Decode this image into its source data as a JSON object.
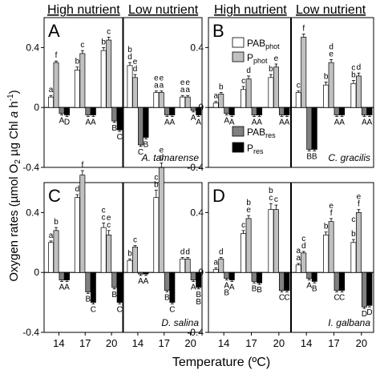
{
  "ylabel_text": "Oxygen rates (µmol O",
  "ylabel_sub": "2",
  "ylabel_tail": " µg Chl ",
  "ylabel_a": "a",
  "ylabel_unit": " h",
  "ylabel_sup": "-1",
  "ylabel_close": ")",
  "xlabel": "Temperature (ºC)",
  "column_headers": [
    "High nutrient",
    "Low nutrient"
  ],
  "legend": [
    {
      "base": "PAB",
      "sub": "phot",
      "color": "#ffffff"
    },
    {
      "base": "P",
      "sub": "phot",
      "color": "#c0c0c0"
    },
    {
      "base": "PAB",
      "sub": "res",
      "color": "#808080"
    },
    {
      "base": "P",
      "sub": "res",
      "color": "#000000"
    }
  ],
  "chart_data": {
    "type": "bar",
    "series_names": [
      "PABphot",
      "Pphot",
      "PABres",
      "Pres"
    ],
    "series_colors": [
      "#ffffff",
      "#c0c0c0",
      "#808080",
      "#000000"
    ],
    "categories": [
      "14",
      "17",
      "20"
    ],
    "ylim": [
      -0.4,
      0.6
    ],
    "yticks": [
      -0.4,
      0,
      0.4
    ],
    "ytick_labels": [
      "-0.4",
      "0",
      "0.4"
    ],
    "panels": [
      {
        "letter": "A",
        "species": "A. tamarense",
        "groups": [
          {
            "nutrient": "high",
            "temp": "14",
            "values": [
              0.07,
              0.3,
              -0.04,
              -0.05
            ],
            "errors": [
              0.01,
              0.01,
              0.01,
              0.01
            ],
            "labels": [
              "a",
              "f",
              "A",
              "D"
            ]
          },
          {
            "nutrient": "high",
            "temp": "17",
            "values": [
              0.25,
              0.36,
              -0.05,
              -0.05
            ],
            "errors": [
              0.02,
              0.02,
              0.01,
              0.01
            ],
            "labels": [
              "b",
              "c",
              "A",
              "A"
            ]
          },
          {
            "nutrient": "high",
            "temp": "20",
            "values": [
              0.38,
              0.45,
              -0.09,
              -0.15
            ],
            "errors": [
              0.02,
              0.02,
              0.01,
              0.01
            ],
            "labels": [
              "b",
              "c",
              "B",
              "C"
            ]
          },
          {
            "nutrient": "low",
            "temp": "14",
            "values": [
              0.28,
              0.2,
              -0.25,
              -0.2
            ],
            "errors": [
              0.02,
              0.02,
              0.01,
              0.01
            ],
            "labels": [
              "d",
              "d",
              "C",
              "B"
            ]
          },
          {
            "nutrient": "low",
            "temp": "17",
            "values": [
              0.1,
              0.1,
              -0.05,
              -0.05
            ],
            "errors": [
              0.01,
              0.01,
              0.01,
              0.01
            ],
            "labels": [
              "a",
              "a",
              "A",
              "A"
            ]
          },
          {
            "nutrient": "low",
            "temp": "20",
            "values": [
              0.07,
              0.07,
              -0.02,
              -0.05
            ],
            "errors": [
              0.01,
              0.01,
              0.01,
              0.01
            ],
            "labels": [
              "a",
              "a",
              "A",
              "A"
            ]
          }
        ],
        "extra_labels": [
          {
            "nutrient": "low",
            "temp": "14",
            "bar": 0,
            "text": "b",
            "row": 2
          },
          {
            "nutrient": "low",
            "temp": "14",
            "bar": 1,
            "text": "e",
            "row": 2
          },
          {
            "nutrient": "low",
            "temp": "17",
            "bar": 0,
            "text": "e",
            "row": 2
          },
          {
            "nutrient": "low",
            "temp": "17",
            "bar": 1,
            "text": "e",
            "row": 2
          },
          {
            "nutrient": "low",
            "temp": "20",
            "bar": 0,
            "text": "e",
            "row": 2
          },
          {
            "nutrient": "low",
            "temp": "20",
            "bar": 1,
            "text": "e",
            "row": 2
          }
        ]
      },
      {
        "letter": "B",
        "species": "C. gracilis",
        "groups": [
          {
            "nutrient": "high",
            "temp": "14",
            "values": [
              0.03,
              0.09,
              -0.04,
              -0.05
            ],
            "errors": [
              0.01,
              0.01,
              0.01,
              0.01
            ],
            "labels": [
              "a",
              "b",
              "A",
              "A"
            ]
          },
          {
            "nutrient": "high",
            "temp": "17",
            "values": [
              0.12,
              0.19,
              -0.05,
              -0.05
            ],
            "errors": [
              0.02,
              0.02,
              0.01,
              0.01
            ],
            "labels": [
              "c",
              "d",
              "A",
              "A"
            ]
          },
          {
            "nutrient": "high",
            "temp": "20",
            "values": [
              0.2,
              0.27,
              -0.05,
              -0.05
            ],
            "errors": [
              0.02,
              0.02,
              0.01,
              0.01
            ],
            "labels": [
              "b",
              "e",
              "A",
              "A"
            ]
          },
          {
            "nutrient": "low",
            "temp": "14",
            "values": [
              0.1,
              0.47,
              -0.28,
              -0.28
            ],
            "errors": [
              0.01,
              0.02,
              0.01,
              0.01
            ],
            "labels": [
              "c",
              "f",
              "B",
              "B"
            ]
          },
          {
            "nutrient": "low",
            "temp": "17",
            "values": [
              0.15,
              0.3,
              -0.05,
              -0.05
            ],
            "errors": [
              0.02,
              0.02,
              0.01,
              0.01
            ],
            "labels": [
              "b",
              "e",
              "A",
              "A"
            ]
          },
          {
            "nutrient": "low",
            "temp": "20",
            "values": [
              0.16,
              0.21,
              -0.05,
              -0.05
            ],
            "errors": [
              0.02,
              0.02,
              0.01,
              0.01
            ],
            "labels": [
              "b",
              "d",
              "A",
              "A"
            ]
          }
        ],
        "extra_labels": [
          {
            "nutrient": "low",
            "temp": "17",
            "bar": 1,
            "text": "d",
            "row": 2
          },
          {
            "nutrient": "low",
            "temp": "20",
            "bar": 0,
            "text": "c",
            "row": 2
          }
        ]
      },
      {
        "letter": "C",
        "species": "D. salina",
        "groups": [
          {
            "nutrient": "high",
            "temp": "14",
            "values": [
              0.2,
              0.28,
              -0.05,
              -0.05
            ],
            "errors": [
              0.01,
              0.02,
              0.01,
              0.01
            ],
            "labels": [
              "a",
              "b",
              "A",
              "A"
            ]
          },
          {
            "nutrient": "high",
            "temp": "17",
            "values": [
              0.5,
              0.65,
              -0.13,
              -0.2
            ],
            "errors": [
              0.02,
              0.03,
              0.01,
              0.01
            ],
            "labels": [
              "d",
              "f",
              "B",
              "C"
            ]
          },
          {
            "nutrient": "high",
            "temp": "20",
            "values": [
              0.3,
              0.25,
              -0.1,
              -0.2
            ],
            "errors": [
              0.03,
              0.03,
              0.01,
              0.01
            ],
            "labels": [
              "c",
              "c",
              "B",
              "C"
            ]
          },
          {
            "nutrient": "low",
            "temp": "14",
            "values": [
              0.08,
              0.17,
              -0.01,
              -0.01
            ],
            "errors": [
              0.01,
              0.01,
              0.01,
              0.01
            ],
            "labels": [
              "b",
              "c",
              "A",
              "A"
            ]
          },
          {
            "nutrient": "low",
            "temp": "17",
            "values": [
              0.5,
              0.7,
              -0.12,
              -0.2
            ],
            "errors": [
              0.05,
              0.03,
              0.01,
              0.01
            ],
            "labels": [
              "b",
              "d",
              "B",
              "C"
            ]
          },
          {
            "nutrient": "low",
            "temp": "20",
            "values": [
              0.09,
              0.09,
              -0.05,
              -0.1
            ],
            "errors": [
              0.01,
              0.01,
              0.01,
              0.01
            ],
            "labels": [
              "d",
              "d",
              "A",
              "B"
            ]
          }
        ],
        "extra_labels": [
          {
            "nutrient": "high",
            "temp": "20",
            "bar": 0,
            "text": "c",
            "row": 2
          },
          {
            "nutrient": "high",
            "temp": "20",
            "bar": 1,
            "text": "e",
            "row": 2
          },
          {
            "nutrient": "low",
            "temp": "17",
            "bar": 0,
            "text": "c",
            "row": 2
          },
          {
            "nutrient": "low",
            "temp": "17",
            "bar": 1,
            "text": "e",
            "row": 2
          },
          {
            "nutrient": "low",
            "temp": "20",
            "bar": 3,
            "text": "B",
            "row": 2
          }
        ]
      },
      {
        "letter": "D",
        "species": "I. galbana",
        "groups": [
          {
            "nutrient": "high",
            "temp": "14",
            "values": [
              0.02,
              0.09,
              -0.04,
              -0.05
            ],
            "errors": [
              0.01,
              0.01,
              0.01,
              0.01
            ],
            "labels": [
              "a",
              "d",
              "A",
              "A"
            ]
          },
          {
            "nutrient": "high",
            "temp": "17",
            "values": [
              0.26,
              0.36,
              -0.06,
              -0.07
            ],
            "errors": [
              0.02,
              0.02,
              0.01,
              0.01
            ],
            "labels": [
              "c",
              "e",
              "B",
              "B"
            ]
          },
          {
            "nutrient": "high",
            "temp": "20",
            "values": [
              0.42,
              0.42,
              -0.12,
              -0.12
            ],
            "errors": [
              0.04,
              0.03,
              0.01,
              0.01
            ],
            "labels": [
              "c",
              "c",
              "C",
              "C"
            ]
          },
          {
            "nutrient": "low",
            "temp": "14",
            "values": [
              0.05,
              0.13,
              -0.04,
              -0.06
            ],
            "errors": [
              0.01,
              0.01,
              0.01,
              0.01
            ],
            "labels": [
              "a",
              "d",
              "A",
              "B"
            ]
          },
          {
            "nutrient": "low",
            "temp": "17",
            "values": [
              0.25,
              0.34,
              -0.12,
              -0.12
            ],
            "errors": [
              0.02,
              0.02,
              0.01,
              0.01
            ],
            "labels": [
              "b",
              "f",
              "C",
              "C"
            ]
          },
          {
            "nutrient": "low",
            "temp": "20",
            "values": [
              0.2,
              0.4,
              -0.23,
              -0.22
            ],
            "errors": [
              0.02,
              0.02,
              0.01,
              0.01
            ],
            "labels": [
              "b",
              "f",
              "D",
              "D"
            ]
          }
        ],
        "extra_labels": [
          {
            "nutrient": "high",
            "temp": "14",
            "bar": 2,
            "text": "B",
            "row": 2
          },
          {
            "nutrient": "high",
            "temp": "17",
            "bar": 1,
            "text": "b",
            "row": 2
          },
          {
            "nutrient": "high",
            "temp": "20",
            "bar": 0,
            "text": "b",
            "row": 2
          },
          {
            "nutrient": "low",
            "temp": "14",
            "bar": 0,
            "text": "a",
            "row": 2
          },
          {
            "nutrient": "low",
            "temp": "14",
            "bar": 1,
            "text": "c",
            "row": 2
          },
          {
            "nutrient": "low",
            "temp": "17",
            "bar": 1,
            "text": "e",
            "row": 2
          },
          {
            "nutrient": "low",
            "temp": "20",
            "bar": 1,
            "text": "e",
            "row": 2
          },
          {
            "nutrient": "low",
            "temp": "20",
            "bar": 0,
            "text": "c",
            "row": 3
          }
        ]
      }
    ]
  }
}
